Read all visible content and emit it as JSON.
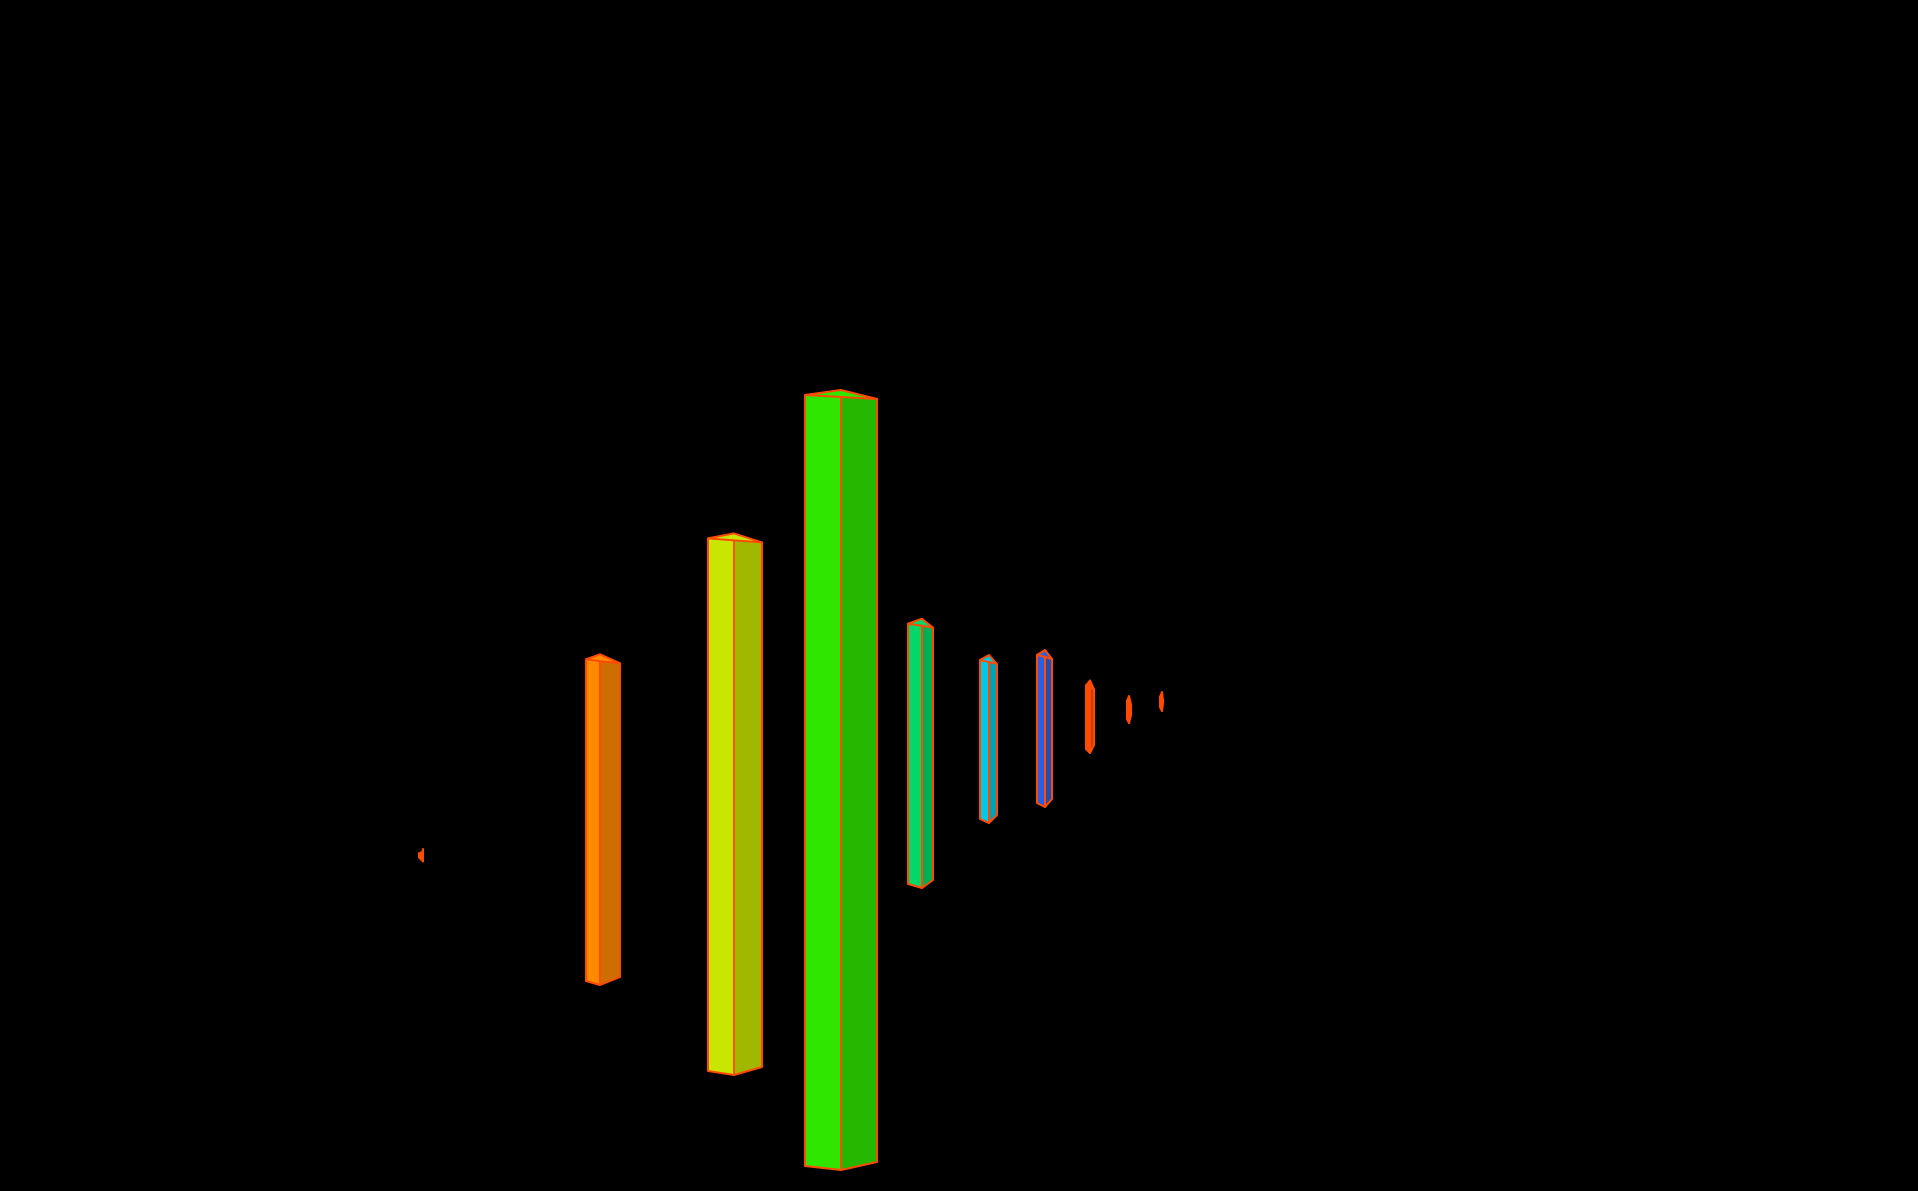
{
  "chart_data": {
    "type": "bar",
    "style": "3d-perspective",
    "background": "#000000",
    "edge_color": "#ff4a00",
    "grid": false,
    "legend": "none",
    "title": "",
    "xlabel": "",
    "ylabel": "",
    "ylim": [
      0,
      100
    ],
    "categories": [
      "",
      "",
      "",
      "",
      "",
      "",
      "",
      "",
      "",
      ""
    ],
    "values": [
      1.2,
      42,
      68,
      100,
      34,
      21,
      20,
      9,
      3,
      2
    ],
    "colors": [
      "#ff7a00",
      "#ff8a00",
      "#c8e600",
      "#2ee600",
      "#00d96a",
      "#00c8e6",
      "#2a5fe0",
      "#ff4a00",
      "#ff6400",
      "#ff5a00"
    ]
  }
}
